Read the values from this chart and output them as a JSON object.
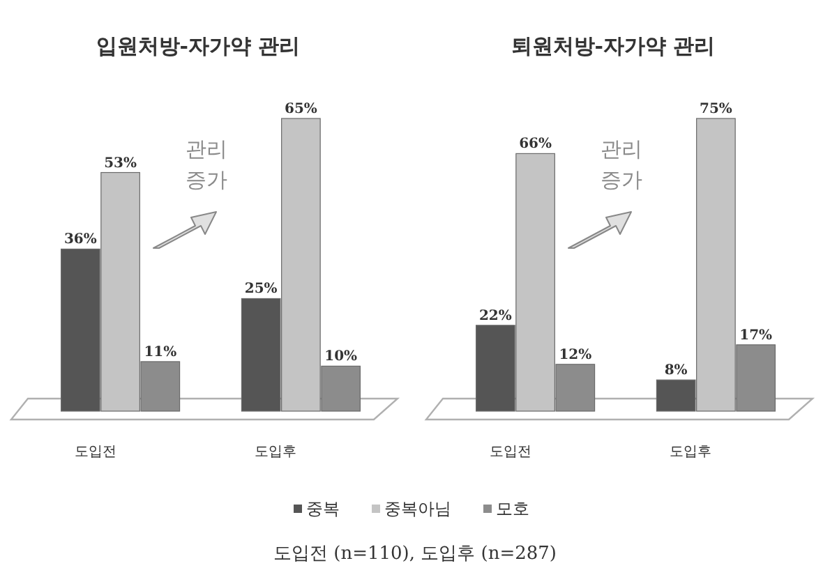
{
  "chart_data": [
    {
      "type": "bar",
      "title": "입원처방-자가약 관리",
      "categories": [
        "도입전",
        "도입후"
      ],
      "series": [
        {
          "name": "중복",
          "color": "#555555",
          "values": [
            36,
            25
          ],
          "value_labels": [
            "36%",
            "25%"
          ]
        },
        {
          "name": "중복아님",
          "color": "#c4c4c4",
          "values": [
            53,
            65
          ],
          "value_labels": [
            "53%",
            "65%"
          ]
        },
        {
          "name": "모호",
          "color": "#8c8c8c",
          "values": [
            11,
            10
          ],
          "value_labels": [
            "11%",
            "10%"
          ]
        }
      ],
      "legend": "bottom",
      "annotations": [
        "관리 증가",
        "도입전 (n=110), 도입후 (n=287)"
      ]
    },
    {
      "type": "bar",
      "title": "퇴원처방-자가약 관리",
      "categories": [
        "도입전",
        "도입후"
      ],
      "series": [
        {
          "color": "#555555",
          "values": [
            22,
            8
          ],
          "value_labels": [
            "22%",
            "8%"
          ]
        },
        {
          "color": "#c4c4c4",
          "values": [
            66,
            75
          ],
          "value_labels": [
            "66%",
            "75%"
          ]
        },
        {
          "color": "#8c8c8c",
          "values": [
            12,
            17
          ],
          "value_labels": [
            "12%",
            "17%"
          ]
        }
      ],
      "annotations": [
        "관리 증가"
      ]
    }
  ]
}
